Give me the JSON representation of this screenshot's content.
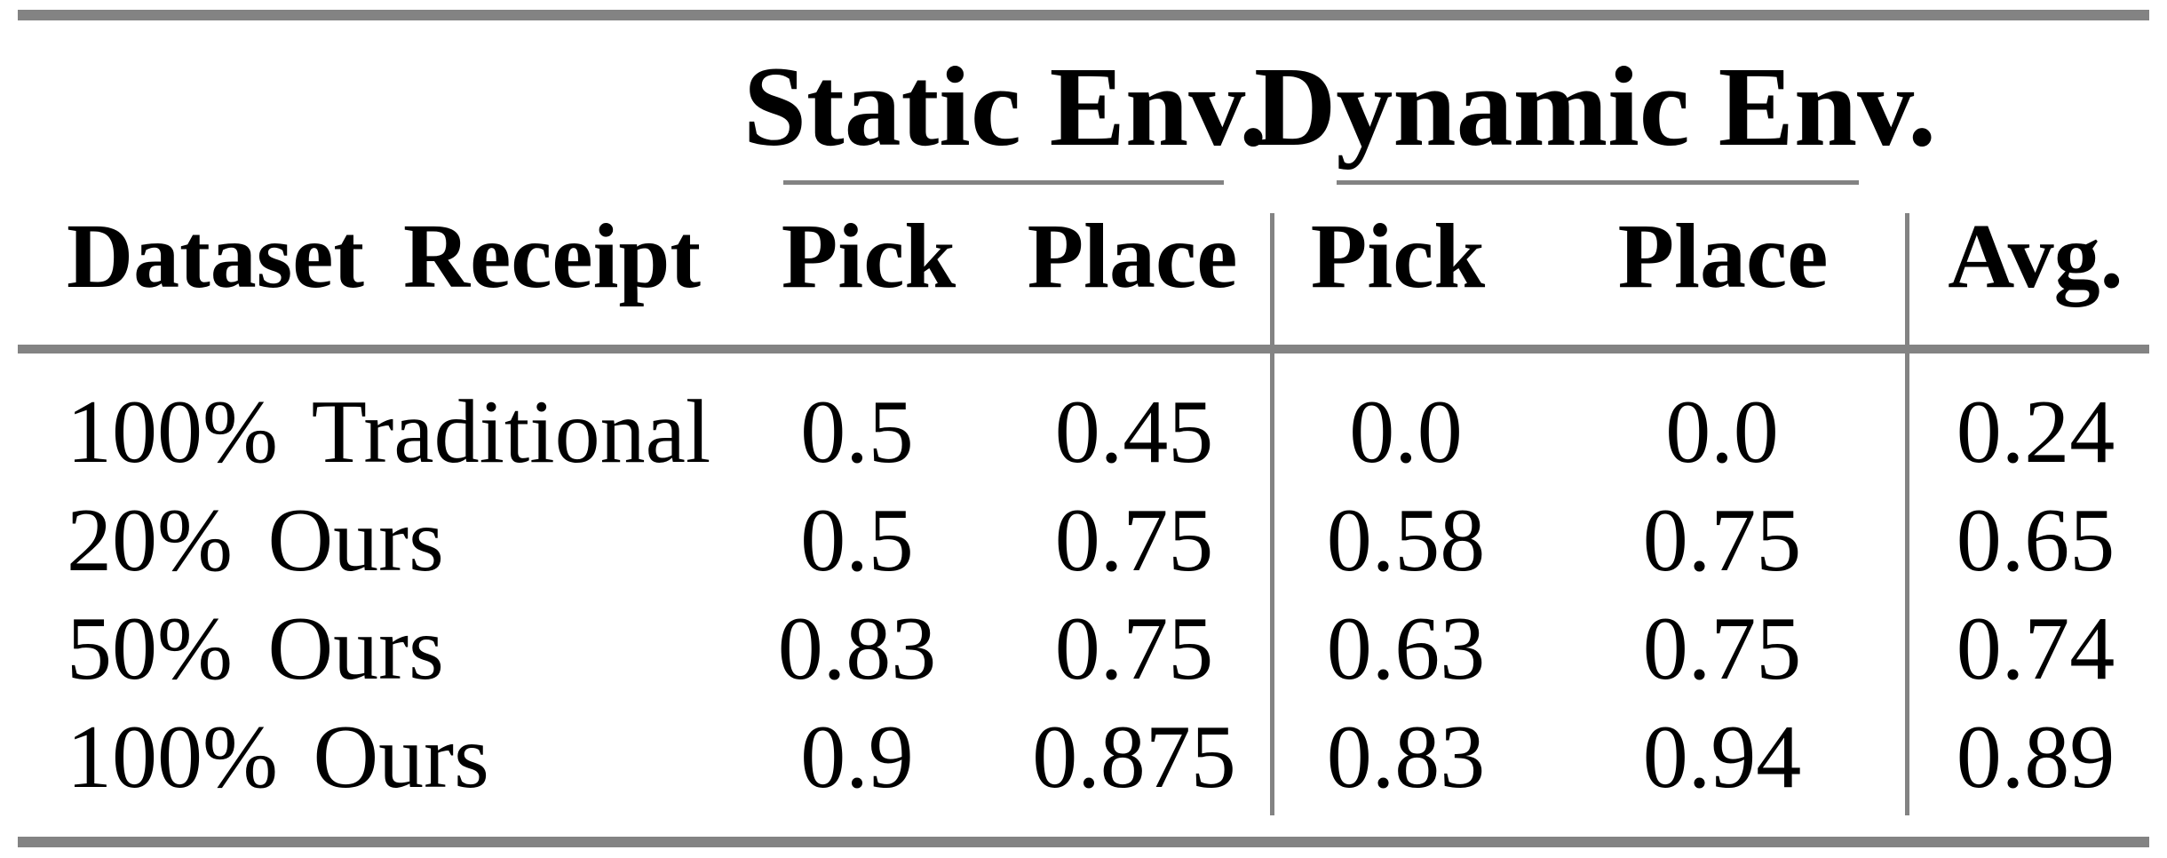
{
  "table": {
    "group_headers": {
      "static": "Static Env.",
      "dynamic": "Dynamic Env."
    },
    "columns": {
      "row_header": "Dataset Receipt",
      "static_pick": "Pick",
      "static_place": "Place",
      "dynamic_pick": "Pick",
      "dynamic_place": "Place",
      "avg": "Avg."
    },
    "rows": [
      {
        "label": "100% Traditional",
        "static_pick": "0.5",
        "static_place": "0.45",
        "dynamic_pick": "0.0",
        "dynamic_place": "0.0",
        "avg": "0.24"
      },
      {
        "label": "20% Ours",
        "static_pick": "0.5",
        "static_place": "0.75",
        "dynamic_pick": "0.58",
        "dynamic_place": "0.75",
        "avg": "0.65"
      },
      {
        "label": "50% Ours",
        "static_pick": "0.83",
        "static_place": "0.75",
        "dynamic_pick": "0.63",
        "dynamic_place": "0.75",
        "avg": "0.74"
      },
      {
        "label": "100% Ours",
        "static_pick": "0.9",
        "static_place": "0.875",
        "dynamic_pick": "0.83",
        "dynamic_place": "0.94",
        "avg": "0.89"
      }
    ]
  },
  "colors": {
    "rule_gray": "#838383",
    "text": "#000000",
    "background": "#ffffff"
  }
}
